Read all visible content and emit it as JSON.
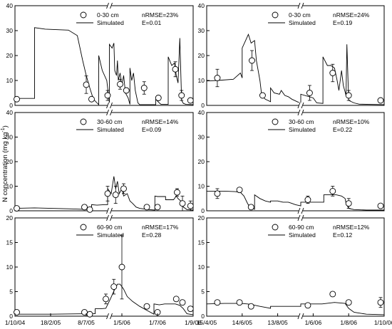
{
  "figure": {
    "ylabel": "N concentration (mg kg",
    "ylabel_sup": "-1",
    "ylabel_close": ")"
  },
  "chart_data": [
    {
      "type": "line",
      "panel": "left-top",
      "ylim": [
        0,
        40
      ],
      "y_ticks": [
        0,
        10,
        20,
        30,
        40
      ],
      "legend": {
        "observed": "0-30 cm",
        "simulated": "Simulated",
        "placement": "top-left"
      },
      "stats": {
        "nrmse": "nRMSE=23%",
        "e": "E=0.01"
      },
      "x_ticks": [],
      "axis_breaks": [
        0.53
      ],
      "observed": [
        {
          "x": 0.01,
          "y": 2.5,
          "err": 0
        },
        {
          "x": 0.4,
          "y": 8.3,
          "err": 3.5
        },
        {
          "x": 0.43,
          "y": 2.5,
          "err": 0.8
        },
        {
          "x": 0.52,
          "y": 4.0,
          "err": 2.0
        },
        {
          "x": 0.59,
          "y": 8.5,
          "err": 2.0
        },
        {
          "x": 0.625,
          "y": 6.0,
          "err": 1.0
        },
        {
          "x": 0.725,
          "y": 7.0,
          "err": 2.5
        },
        {
          "x": 0.805,
          "y": 3.0,
          "err": 1.0
        },
        {
          "x": 0.9,
          "y": 14.5,
          "err": 3.0
        },
        {
          "x": 0.935,
          "y": 4.0,
          "err": 2.0
        },
        {
          "x": 0.985,
          "y": 2.0,
          "err": 0
        }
      ],
      "simulated": [
        [
          0.0,
          2.8
        ],
        [
          0.11,
          2.8
        ],
        [
          0.11,
          31.2
        ],
        [
          0.17,
          30.6
        ],
        [
          0.3,
          30.2
        ],
        [
          0.35,
          28
        ],
        [
          0.38,
          18
        ],
        [
          0.4,
          12
        ],
        [
          0.42,
          7
        ],
        [
          0.44,
          2.5
        ],
        [
          0.47,
          0.3
        ],
        [
          0.47,
          20
        ],
        [
          0.49,
          14
        ],
        [
          0.515,
          10
        ],
        [
          0.53,
          1.0
        ],
        [
          0.53,
          24.5
        ],
        [
          0.545,
          23
        ],
        [
          0.555,
          25
        ],
        [
          0.56,
          14
        ],
        [
          0.57,
          12
        ],
        [
          0.575,
          18
        ],
        [
          0.58,
          10
        ],
        [
          0.59,
          13
        ],
        [
          0.6,
          8
        ],
        [
          0.61,
          12
        ],
        [
          0.62,
          5
        ],
        [
          0.635,
          3
        ],
        [
          0.645,
          0.4
        ],
        [
          0.645,
          15
        ],
        [
          0.655,
          10
        ],
        [
          0.665,
          13
        ],
        [
          0.675,
          6
        ],
        [
          0.69,
          1.0
        ],
        [
          0.7,
          0.3
        ],
        [
          0.79,
          0.3
        ],
        [
          0.79,
          2.5
        ],
        [
          0.81,
          1.0
        ],
        [
          0.82,
          0.4
        ],
        [
          0.86,
          0.4
        ],
        [
          0.86,
          19.5
        ],
        [
          0.88,
          16
        ],
        [
          0.895,
          17
        ],
        [
          0.905,
          12
        ],
        [
          0.915,
          9
        ],
        [
          0.925,
          27
        ],
        [
          0.935,
          2
        ],
        [
          0.945,
          0.8
        ],
        [
          0.96,
          0.4
        ],
        [
          1.0,
          0.3
        ]
      ]
    },
    {
      "type": "line",
      "panel": "right-top",
      "ylim": [
        0,
        40
      ],
      "y_ticks": [
        0,
        10,
        20,
        30,
        40
      ],
      "legend": {
        "observed": "0-30 cm",
        "simulated": "Simulated",
        "placement": "top-left"
      },
      "stats": {
        "nrmse": "nRMSE=24%",
        "e": "E=0.19"
      },
      "x_ticks": [],
      "axis_breaks": [
        0.53
      ],
      "observed": [
        {
          "x": 0.06,
          "y": 11.0,
          "err": 3.5
        },
        {
          "x": 0.255,
          "y": 18.0,
          "err": 4.0
        },
        {
          "x": 0.315,
          "y": 4.0,
          "err": 0
        },
        {
          "x": 0.58,
          "y": 5.0,
          "err": 3.0
        },
        {
          "x": 0.71,
          "y": 13.0,
          "err": 3.5
        },
        {
          "x": 0.8,
          "y": 4.0,
          "err": 2.0
        },
        {
          "x": 0.98,
          "y": 2.0,
          "err": 0
        }
      ],
      "simulated": [
        [
          0.0,
          9.8
        ],
        [
          0.06,
          10
        ],
        [
          0.15,
          10.5
        ],
        [
          0.19,
          13
        ],
        [
          0.2,
          11
        ],
        [
          0.2,
          23
        ],
        [
          0.235,
          28.5
        ],
        [
          0.25,
          25
        ],
        [
          0.27,
          26
        ],
        [
          0.28,
          18
        ],
        [
          0.3,
          10
        ],
        [
          0.31,
          4
        ],
        [
          0.33,
          2.5
        ],
        [
          0.36,
          1.5
        ],
        [
          0.36,
          7
        ],
        [
          0.38,
          5
        ],
        [
          0.41,
          4.5
        ],
        [
          0.42,
          6
        ],
        [
          0.44,
          4
        ],
        [
          0.46,
          3.5
        ],
        [
          0.48,
          2.5
        ],
        [
          0.51,
          1.5
        ],
        [
          0.53,
          0.8
        ],
        [
          0.53,
          4.5
        ],
        [
          0.6,
          3
        ],
        [
          0.62,
          1
        ],
        [
          0.655,
          0.8
        ],
        [
          0.655,
          19.5
        ],
        [
          0.68,
          16
        ],
        [
          0.7,
          16
        ],
        [
          0.72,
          15
        ],
        [
          0.735,
          10
        ],
        [
          0.745,
          6
        ],
        [
          0.76,
          14
        ],
        [
          0.77,
          8
        ],
        [
          0.785,
          4
        ],
        [
          0.79,
          24.5
        ],
        [
          0.8,
          2
        ],
        [
          0.83,
          1
        ],
        [
          0.86,
          0.5
        ],
        [
          1.0,
          0.3
        ]
      ]
    },
    {
      "type": "line",
      "panel": "left-middle",
      "ylim": [
        0,
        40
      ],
      "y_ticks": [
        0,
        10,
        20,
        30,
        40
      ],
      "legend": {
        "observed": "30-60 cm",
        "simulated": "Simulated",
        "placement": "top-left"
      },
      "stats": {
        "nrmse": "nRMSE=14%",
        "e": "E=0.09"
      },
      "x_ticks": [],
      "axis_breaks": [
        0.53
      ],
      "observed": [
        {
          "x": 0.01,
          "y": 1.0,
          "err": 0
        },
        {
          "x": 0.39,
          "y": 1.5,
          "err": 0
        },
        {
          "x": 0.42,
          "y": 0.5,
          "err": 0
        },
        {
          "x": 0.52,
          "y": 7.0,
          "err": 3.0
        },
        {
          "x": 0.565,
          "y": 6.5,
          "err": 3.5
        },
        {
          "x": 0.61,
          "y": 9.0,
          "err": 2.0
        },
        {
          "x": 0.74,
          "y": 1.5,
          "err": 0
        },
        {
          "x": 0.8,
          "y": 1.5,
          "err": 0
        },
        {
          "x": 0.91,
          "y": 7.5,
          "err": 1.5
        },
        {
          "x": 0.94,
          "y": 3.0,
          "err": 3.0
        },
        {
          "x": 0.985,
          "y": 2.0,
          "err": 2.0
        }
      ],
      "simulated": [
        [
          0.0,
          1.0
        ],
        [
          0.11,
          1.2
        ],
        [
          0.3,
          0.8
        ],
        [
          0.43,
          0.5
        ],
        [
          0.43,
          2.5
        ],
        [
          0.46,
          2.3
        ],
        [
          0.5,
          2.5
        ],
        [
          0.52,
          2.5
        ],
        [
          0.52,
          9
        ],
        [
          0.54,
          7
        ],
        [
          0.555,
          14
        ],
        [
          0.565,
          9
        ],
        [
          0.575,
          12
        ],
        [
          0.585,
          7
        ],
        [
          0.6,
          9
        ],
        [
          0.61,
          6
        ],
        [
          0.63,
          7
        ],
        [
          0.645,
          4
        ],
        [
          0.66,
          3
        ],
        [
          0.68,
          1.5
        ],
        [
          0.7,
          1.0
        ],
        [
          0.75,
          0.5
        ],
        [
          0.785,
          0.3
        ],
        [
          0.785,
          6
        ],
        [
          0.8,
          5.8
        ],
        [
          0.82,
          5.8
        ],
        [
          0.845,
          5.8
        ],
        [
          0.845,
          4.5
        ],
        [
          0.89,
          4.5
        ],
        [
          0.905,
          6
        ],
        [
          0.915,
          5
        ],
        [
          0.93,
          4
        ],
        [
          0.945,
          1.5
        ],
        [
          0.965,
          0.5
        ],
        [
          1.0,
          0.3
        ]
      ]
    },
    {
      "type": "line",
      "panel": "right-middle",
      "ylim": [
        0,
        40
      ],
      "y_ticks": [
        0,
        10,
        20,
        30,
        40
      ],
      "legend": {
        "observed": "30-60 cm",
        "simulated": "Simulated",
        "placement": "top-left"
      },
      "stats": {
        "nrmse": "nRMSE=10%",
        "e": "E=0.22"
      },
      "x_ticks": [],
      "axis_breaks": [
        0.53
      ],
      "observed": [
        {
          "x": 0.06,
          "y": 7.0,
          "err": 2.0
        },
        {
          "x": 0.185,
          "y": 8.5,
          "err": 0
        },
        {
          "x": 0.25,
          "y": 1.5,
          "err": 0
        },
        {
          "x": 0.57,
          "y": 4.5,
          "err": 1.5
        },
        {
          "x": 0.71,
          "y": 8.0,
          "err": 2.0
        },
        {
          "x": 0.8,
          "y": 3.0,
          "err": 2.0
        },
        {
          "x": 0.98,
          "y": 2.0,
          "err": 0
        }
      ],
      "simulated": [
        [
          0.0,
          8.0
        ],
        [
          0.04,
          8.0
        ],
        [
          0.1,
          8.0
        ],
        [
          0.16,
          7.8
        ],
        [
          0.19,
          7.5
        ],
        [
          0.21,
          6
        ],
        [
          0.23,
          3
        ],
        [
          0.245,
          1.2
        ],
        [
          0.27,
          0.6
        ],
        [
          0.27,
          6.5
        ],
        [
          0.3,
          5
        ],
        [
          0.33,
          4
        ],
        [
          0.36,
          3.5
        ],
        [
          0.36,
          4
        ],
        [
          0.4,
          4
        ],
        [
          0.43,
          3.5
        ],
        [
          0.46,
          3.5
        ],
        [
          0.48,
          3.0
        ],
        [
          0.5,
          2.5
        ],
        [
          0.53,
          2.0
        ],
        [
          0.53,
          3.5
        ],
        [
          0.6,
          3.5
        ],
        [
          0.62,
          3.5
        ],
        [
          0.66,
          3.5
        ],
        [
          0.66,
          6.5
        ],
        [
          0.7,
          6.5
        ],
        [
          0.73,
          6.5
        ],
        [
          0.76,
          6
        ],
        [
          0.78,
          5
        ],
        [
          0.785,
          3
        ],
        [
          0.8,
          1
        ],
        [
          0.83,
          0.5
        ],
        [
          0.9,
          0.3
        ],
        [
          1.0,
          0.3
        ]
      ]
    },
    {
      "type": "line",
      "panel": "left-bottom",
      "ylim": [
        0,
        20
      ],
      "y_ticks": [
        0,
        5,
        10,
        15,
        20
      ],
      "legend": {
        "observed": "60-90 cm",
        "simulated": "Simulated",
        "placement": "top-left"
      },
      "stats": {
        "nrmse": "nRMSE=17%",
        "e": "E=0.28"
      },
      "x_ticks": [
        {
          "label": "1/10/04",
          "pos": 0.0
        },
        {
          "label": "18/2/05",
          "pos": 0.2
        },
        {
          "label": "8/7/05",
          "pos": 0.4
        },
        {
          "label": "1/5/06",
          "pos": 0.6
        },
        {
          "label": "1/7/06",
          "pos": 0.8
        },
        {
          "label": "1/9/06",
          "pos": 1.0
        }
      ],
      "axis_breaks": [
        0.53
      ],
      "observed": [
        {
          "x": 0.01,
          "y": 0.8,
          "err": 0
        },
        {
          "x": 0.39,
          "y": 0.8,
          "err": 0
        },
        {
          "x": 0.42,
          "y": 0.4,
          "err": 0
        },
        {
          "x": 0.51,
          "y": 3.5,
          "err": 1.0
        },
        {
          "x": 0.555,
          "y": 6.0,
          "err": 1.5
        },
        {
          "x": 0.6,
          "y": 10.0,
          "err": 6.5
        },
        {
          "x": 0.74,
          "y": 2.0,
          "err": 0
        },
        {
          "x": 0.8,
          "y": 0.8,
          "err": 0
        },
        {
          "x": 0.905,
          "y": 3.5,
          "err": 0
        },
        {
          "x": 0.94,
          "y": 2.8,
          "err": 0
        },
        {
          "x": 0.985,
          "y": 1.5,
          "err": 0.5
        }
      ],
      "simulated": [
        [
          0.0,
          0.4
        ],
        [
          0.2,
          0.4
        ],
        [
          0.4,
          0.5
        ],
        [
          0.45,
          0.5
        ],
        [
          0.45,
          1.5
        ],
        [
          0.48,
          1.5
        ],
        [
          0.51,
          1.6
        ],
        [
          0.535,
          3.5
        ],
        [
          0.56,
          5.5
        ],
        [
          0.575,
          6.5
        ],
        [
          0.59,
          6.5
        ],
        [
          0.61,
          5.5
        ],
        [
          0.63,
          4
        ],
        [
          0.66,
          3
        ],
        [
          0.7,
          2.0
        ],
        [
          0.75,
          1.0
        ],
        [
          0.78,
          0.4
        ],
        [
          0.78,
          2.5
        ],
        [
          0.81,
          2.3
        ],
        [
          0.84,
          2.5
        ],
        [
          0.87,
          2.5
        ],
        [
          0.9,
          2.5
        ],
        [
          0.925,
          2.2
        ],
        [
          0.945,
          1.5
        ],
        [
          0.965,
          0.5
        ],
        [
          1.0,
          0.3
        ]
      ]
    },
    {
      "type": "line",
      "panel": "right-bottom",
      "ylim": [
        0,
        20
      ],
      "y_ticks": [
        0,
        5,
        10,
        15,
        20
      ],
      "legend": {
        "observed": "60-90 cm",
        "simulated": "Simulated",
        "placement": "top-left"
      },
      "stats": {
        "nrmse": "nRMSE=12%",
        "e": "E=0.12"
      },
      "x_ticks": [
        {
          "label": "15/4/05",
          "pos": 0.0
        },
        {
          "label": "14/6/05",
          "pos": 0.2
        },
        {
          "label": "13/8/05",
          "pos": 0.4
        },
        {
          "label": "1/6/06",
          "pos": 0.6
        },
        {
          "label": "1/8/06",
          "pos": 0.8
        },
        {
          "label": "1/10/06",
          "pos": 1.0
        }
      ],
      "axis_breaks": [
        0.53
      ],
      "observed": [
        {
          "x": 0.06,
          "y": 2.8,
          "err": 0
        },
        {
          "x": 0.185,
          "y": 2.8,
          "err": 0
        },
        {
          "x": 0.25,
          "y": 2.0,
          "err": 0
        },
        {
          "x": 0.57,
          "y": 2.2,
          "err": 0
        },
        {
          "x": 0.71,
          "y": 4.5,
          "err": 0
        },
        {
          "x": 0.8,
          "y": 2.8,
          "err": 0
        },
        {
          "x": 0.98,
          "y": 2.8,
          "err": 1.0
        }
      ],
      "simulated": [
        [
          0.0,
          2.5
        ],
        [
          0.1,
          2.6
        ],
        [
          0.19,
          2.6
        ],
        [
          0.23,
          2.5
        ],
        [
          0.26,
          2.3
        ],
        [
          0.3,
          2.0
        ],
        [
          0.33,
          1.8
        ],
        [
          0.36,
          1.6
        ],
        [
          0.36,
          2.0
        ],
        [
          0.45,
          2.0
        ],
        [
          0.53,
          2.0
        ],
        [
          0.53,
          2.5
        ],
        [
          0.6,
          2.5
        ],
        [
          0.65,
          2.5
        ],
        [
          0.72,
          2.8
        ],
        [
          0.78,
          2.6
        ],
        [
          0.8,
          1.6
        ],
        [
          0.83,
          0.8
        ],
        [
          0.9,
          0.4
        ],
        [
          1.0,
          0.3
        ]
      ]
    }
  ]
}
